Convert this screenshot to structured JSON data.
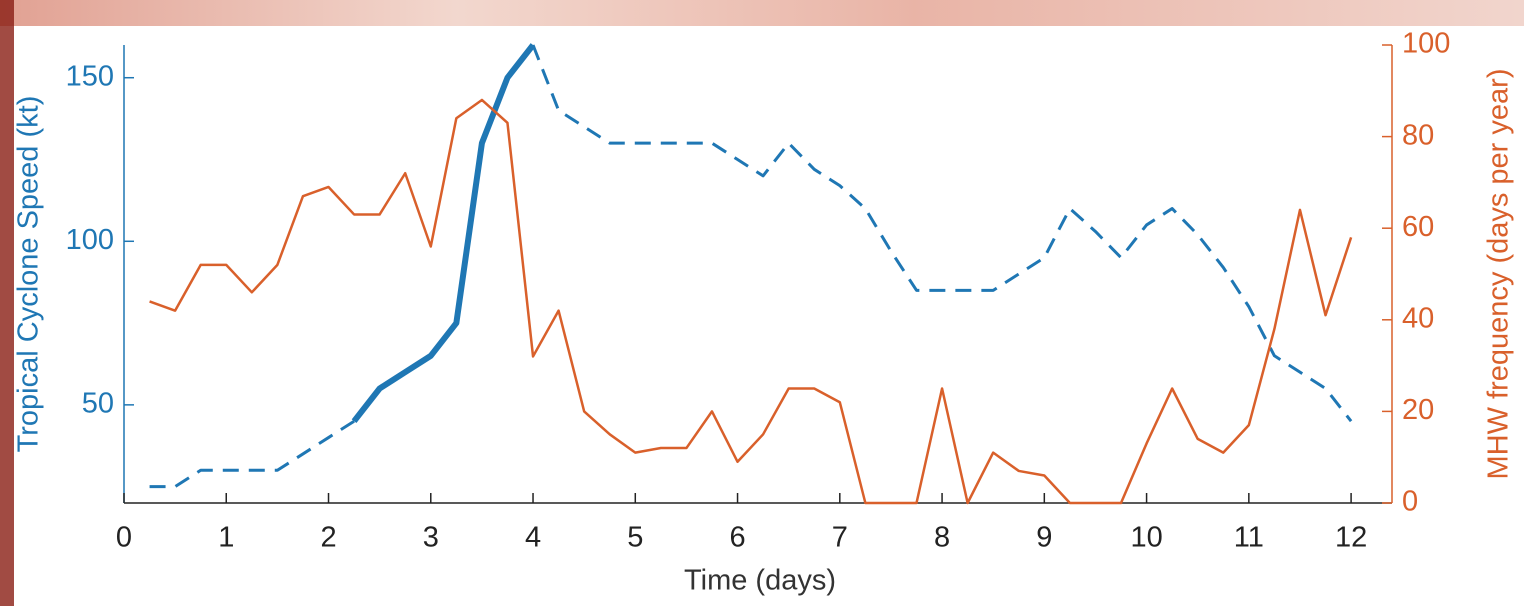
{
  "chart_data": {
    "type": "line",
    "x_label": "Time (days)",
    "y_label": "Tropical Cyclone Speed (kt)",
    "y2_label": "MHW frequency (days per year)",
    "x": [
      0.25,
      0.5,
      0.75,
      1,
      1.25,
      1.5,
      1.75,
      2,
      2.25,
      2.5,
      2.75,
      3,
      3.25,
      3.5,
      3.75,
      4,
      4.25,
      4.5,
      4.75,
      5,
      5.25,
      5.5,
      5.75,
      6,
      6.25,
      6.5,
      6.75,
      7,
      7.25,
      7.5,
      7.75,
      8,
      8.25,
      8.5,
      8.75,
      9,
      9.25,
      9.5,
      9.75,
      10,
      10.25,
      10.5,
      10.75,
      11,
      11.25,
      11.5,
      11.75,
      12
    ],
    "series": [
      {
        "color": "#1f77b4",
        "dashed": true,
        "width": 3,
        "values": [
          25,
          25,
          30,
          30,
          30,
          30,
          35,
          40,
          45,
          null,
          null,
          null,
          null,
          null,
          null,
          160,
          140,
          135,
          130,
          130,
          130,
          130,
          130,
          125,
          120,
          130,
          122,
          117,
          110,
          97,
          85,
          85,
          85,
          85,
          90,
          95,
          110,
          103,
          95,
          105,
          110,
          102,
          92,
          80,
          65,
          60,
          55,
          45
        ]
      },
      {
        "color": "#1f77b4",
        "dashed": false,
        "width": 6,
        "values": [
          null,
          null,
          null,
          null,
          null,
          null,
          null,
          null,
          45,
          55,
          60,
          65,
          75,
          130,
          150,
          160,
          null,
          null,
          null,
          null,
          null,
          null,
          null,
          null,
          null,
          null,
          null,
          null,
          null,
          null,
          null,
          null,
          null,
          null,
          null,
          null,
          null,
          null,
          null,
          null,
          null,
          null,
          null,
          null,
          null,
          null,
          null,
          null
        ]
      },
      {
        "color": "#d9602b",
        "dashed": false,
        "width": 2.5,
        "axis": "y2",
        "values": [
          44,
          42,
          52,
          52,
          46,
          52,
          67,
          69,
          63,
          63,
          72,
          56,
          84,
          88,
          83,
          32,
          42,
          20,
          15,
          11,
          12,
          12,
          20,
          9,
          15,
          25,
          25,
          22,
          0,
          0,
          0,
          25,
          0,
          11,
          7,
          6,
          0,
          0,
          0,
          13,
          25,
          14,
          11,
          17,
          38,
          64,
          41,
          58
        ]
      }
    ],
    "xlim": [
      0,
      12.4
    ],
    "xticks": [
      0,
      1,
      2,
      3,
      4,
      5,
      6,
      7,
      8,
      9,
      10,
      11,
      12
    ],
    "ylim": [
      20,
      160
    ],
    "yticks": [
      50,
      100,
      150
    ],
    "y_color": "#1f77b4",
    "y2lim": [
      0,
      100
    ],
    "y2ticks": [
      0,
      20,
      40,
      60,
      80,
      100
    ],
    "y2_color": "#d9602b"
  }
}
